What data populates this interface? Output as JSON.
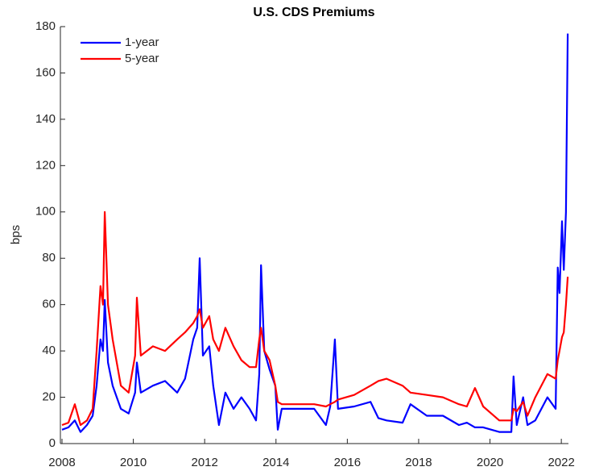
{
  "chart_data": {
    "type": "line",
    "title": "U.S. CDS Premiums",
    "y_label": "bps",
    "x": [
      2008.0,
      2008.18,
      2008.36,
      2008.52,
      2008.7,
      2008.86,
      2008.97,
      2009.08,
      2009.15,
      2009.2,
      2009.29,
      2009.42,
      2009.65,
      2009.87,
      2010.05,
      2010.1,
      2010.21,
      2010.55,
      2010.89,
      2011.23,
      2011.45,
      2011.68,
      2011.79,
      2011.86,
      2011.95,
      2012.13,
      2012.24,
      2012.4,
      2012.58,
      2012.81,
      2013.03,
      2013.26,
      2013.44,
      2013.53,
      2013.58,
      2013.67,
      2013.82,
      2013.98,
      2014.05,
      2014.16,
      2014.61,
      2015.07,
      2015.4,
      2015.52,
      2015.65,
      2015.74,
      2016.19,
      2016.65,
      2016.87,
      2017.1,
      2017.55,
      2017.77,
      2018.23,
      2018.68,
      2019.13,
      2019.35,
      2019.58,
      2019.81,
      2020.26,
      2020.6,
      2020.66,
      2020.75,
      2020.93,
      2021.05,
      2021.27,
      2021.61,
      2021.84,
      2021.9,
      2021.95,
      2022.02,
      2022.07,
      2022.13,
      2022.18
    ],
    "series": [
      {
        "name": "1-year",
        "color": "#0000ff",
        "values": [
          6,
          7,
          10,
          5,
          8,
          12,
          25,
          45,
          40,
          62,
          35,
          25,
          15,
          13,
          22,
          35,
          22,
          25,
          27,
          22,
          28,
          45,
          50,
          80,
          38,
          42,
          25,
          8,
          22,
          15,
          20,
          15,
          10,
          30,
          77,
          40,
          32,
          25,
          6,
          15,
          15,
          15,
          8,
          16,
          45,
          15,
          16,
          18,
          11,
          10,
          9,
          17,
          12,
          12,
          8,
          9,
          7,
          7,
          5,
          5,
          29,
          8,
          20,
          8,
          10,
          20,
          15,
          76,
          65,
          96,
          75,
          100,
          177
        ]
      },
      {
        "name": "5-year",
        "color": "#ff0000",
        "values": [
          8,
          9,
          17,
          8,
          10,
          15,
          40,
          68,
          60,
          100,
          60,
          45,
          25,
          22,
          38,
          63,
          38,
          42,
          40,
          45,
          48,
          52,
          55,
          58,
          50,
          55,
          45,
          40,
          50,
          42,
          36,
          33,
          33,
          45,
          50,
          40,
          36,
          25,
          18,
          17,
          17,
          17,
          16,
          17,
          18,
          19,
          21,
          25,
          27,
          28,
          25,
          22,
          21,
          20,
          17,
          16,
          24,
          16,
          10,
          10,
          15,
          14,
          18,
          12,
          20,
          30,
          28,
          36,
          40,
          46,
          48,
          60,
          72
        ]
      }
    ],
    "xlim": [
      2007.955,
      2022.2
    ],
    "xticks": [
      2008,
      2010,
      2012,
      2014,
      2016,
      2018,
      2020,
      2022
    ],
    "ylim": [
      0,
      180
    ],
    "yticks": [
      0,
      20,
      40,
      60,
      80,
      100,
      120,
      140,
      160,
      180
    ],
    "legend": "upper left"
  }
}
